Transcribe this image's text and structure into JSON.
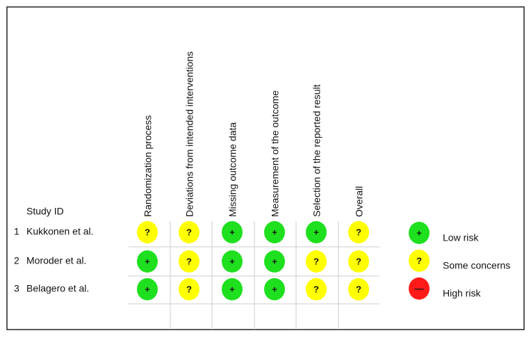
{
  "header": {
    "study_id": "Study ID"
  },
  "columns": [
    "Randomization process",
    "Deviations from intended interventions",
    "Missing outcome data",
    "Measurement of the outcome",
    "Selection of the reported result",
    "Overall"
  ],
  "rows": [
    {
      "number": "1",
      "study": "Kukkonen et al.",
      "judgements": [
        "?",
        "?",
        "+",
        "+",
        "+",
        "?"
      ]
    },
    {
      "number": "2",
      "study": "Moroder et al.",
      "judgements": [
        "+",
        "?",
        "+",
        "+",
        "?",
        "?"
      ]
    },
    {
      "number": "3",
      "study": "Belagero et al.",
      "judgements": [
        "+",
        "?",
        "+",
        "+",
        "?",
        "?"
      ]
    }
  ],
  "legend": [
    {
      "symbol": "+",
      "label": "Low risk",
      "color": "#1fe01f"
    },
    {
      "symbol": "?",
      "label": "Some concerns",
      "color": "#ffff00"
    },
    {
      "symbol": "—",
      "label": "High risk",
      "color": "#ff1a1a"
    }
  ]
}
